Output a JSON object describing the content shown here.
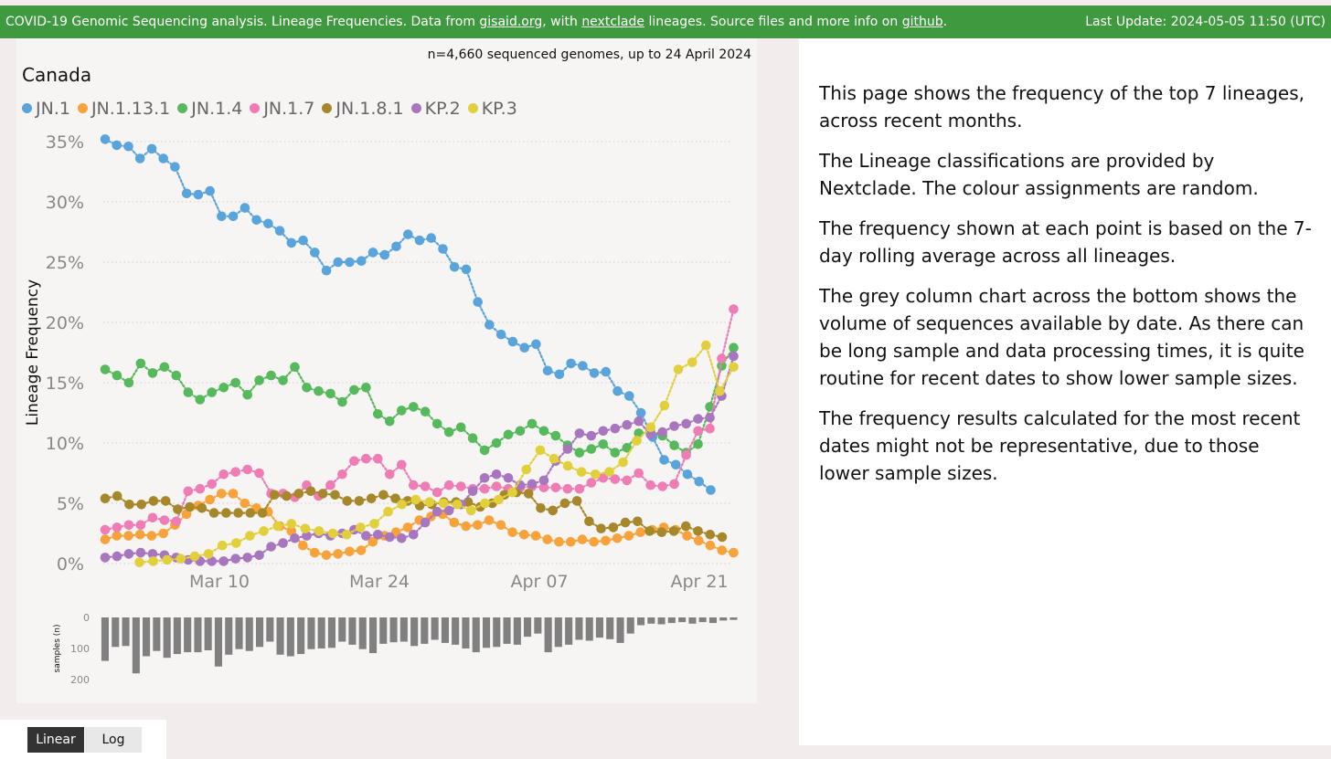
{
  "header": {
    "text_before_link1": "COVID-19 Genomic Sequencing analysis. Lineage Frequencies. Data from ",
    "link1": "gisaid.org",
    "text_between_1_2": ", with ",
    "link2": "nextclade",
    "text_between_2_3": " lineages. Source files and more info on ",
    "link3": "github",
    "text_after_link3": ".",
    "last_update": "Last Update: 2024-05-05 11:50 (UTC)"
  },
  "chart_panel": {
    "subtitle": "n=4,660 sequenced genomes, up to 24 April 2024",
    "region": "Canada"
  },
  "description": {
    "paragraphs": [
      "This page shows the frequency of the top 7 lineages, across recent months.",
      "The Lineage classifications are provided by Nextclade. The colour assignments are random.",
      "The frequency shown at each point is based on the 7-day rolling average across all lineages.",
      "The grey column chart across the bottom shows the volume of sequences available by date.  As there can be long sample and data processing times, it is quite routine for recent dates to show lower sample sizes.",
      "The frequency results calculated for the most recent dates might not be representative, due to those lower sample sizes."
    ]
  },
  "buttons": {
    "linear": "Linear",
    "log": "Log"
  },
  "chart_data": [
    {
      "type": "line",
      "ylabel": "Lineage Frequency",
      "ytick_labels": [
        "0%",
        "5%",
        "10%",
        "15%",
        "20%",
        "25%",
        "30%",
        "35%"
      ],
      "ylim": [
        0,
        0.36
      ],
      "grid": "horizontal dotted",
      "legend_position": "top-left",
      "x_range": [
        "2024-02-29",
        "2024-04-24"
      ],
      "xtick_labels": [
        {
          "date": "2024-03-10",
          "label": "Mar 10"
        },
        {
          "date": "2024-03-24",
          "label": "Mar 24"
        },
        {
          "date": "2024-04-07",
          "label": "Apr 07"
        },
        {
          "date": "2024-04-21",
          "label": "Apr 21"
        }
      ],
      "series": [
        {
          "name": "JN.1",
          "color": "#5aa4dc",
          "start": "2024-02-29",
          "end": "2024-04-22",
          "values": [
            35.2,
            34.7,
            34.6,
            33.6,
            34.4,
            33.6,
            32.9,
            30.7,
            30.6,
            30.9,
            28.8,
            28.8,
            29.5,
            28.5,
            28.2,
            27.6,
            26.6,
            26.8,
            25.8,
            24.3,
            25.0,
            25.0,
            25.1,
            25.8,
            25.6,
            26.3,
            27.3,
            26.8,
            27.0,
            26.1,
            24.6,
            24.4,
            21.7,
            19.8,
            19.0,
            18.4,
            17.9,
            18.2,
            16.0,
            15.7,
            16.6,
            16.4,
            15.8,
            15.9,
            14.3,
            13.9,
            12.5,
            10.5,
            8.6,
            8.2,
            7.4,
            6.8,
            6.1
          ]
        },
        {
          "name": "JN.1.13.1",
          "color": "#f7a23b",
          "start": "2024-02-29",
          "end": "2024-04-24",
          "values": [
            2.0,
            2.3,
            2.3,
            2.4,
            2.3,
            2.5,
            3.2,
            4.1,
            4.8,
            5.3,
            5.8,
            5.8,
            5.0,
            4.6,
            4.3,
            3.1,
            2.7,
            1.5,
            0.9,
            0.7,
            0.8,
            1.0,
            1.1,
            1.8,
            2.3,
            2.6,
            3.0,
            3.6,
            3.9,
            4.1,
            3.4,
            3.1,
            3.2,
            3.6,
            3.2,
            2.6,
            2.4,
            2.3,
            2.0,
            1.8,
            1.8,
            2.0,
            1.8,
            1.9,
            2.1,
            2.3,
            2.6,
            2.8,
            3.0,
            2.8,
            2.3,
            1.9,
            1.5,
            1.1,
            0.9
          ]
        },
        {
          "name": "JN.1.4",
          "color": "#56b95b",
          "start": "2024-02-29",
          "end": "2024-04-24",
          "values": [
            16.1,
            15.6,
            15.0,
            16.6,
            15.8,
            16.3,
            15.6,
            14.2,
            13.6,
            14.2,
            14.6,
            15.0,
            14.0,
            15.2,
            15.6,
            15.2,
            16.3,
            14.6,
            14.3,
            14.1,
            13.4,
            14.4,
            14.6,
            12.4,
            11.8,
            12.7,
            13.0,
            12.6,
            11.6,
            10.9,
            11.3,
            10.4,
            9.4,
            10.0,
            10.7,
            11.0,
            11.6,
            11.0,
            10.6,
            9.8,
            9.2,
            9.5,
            9.9,
            9.2,
            9.6,
            10.8,
            10.9,
            10.6,
            9.8,
            9.2,
            9.9,
            13.0,
            16.4,
            17.9
          ]
        },
        {
          "name": "JN.1.7",
          "color": "#ef7cb4",
          "start": "2024-02-29",
          "end": "2024-04-24",
          "values": [
            2.8,
            3.0,
            3.2,
            3.2,
            3.8,
            3.6,
            3.5,
            6.0,
            6.2,
            6.6,
            7.4,
            7.6,
            7.8,
            7.5,
            5.8,
            5.8,
            5.5,
            6.5,
            5.6,
            6.5,
            7.4,
            8.5,
            8.7,
            8.7,
            7.4,
            8.2,
            6.5,
            6.4,
            5.9,
            6.5,
            6.4,
            6.2,
            6.2,
            6.4,
            6.2,
            6.3,
            6.4,
            6.3,
            6.3,
            6.2,
            6.2,
            6.7,
            7.1,
            7.0,
            6.9,
            7.5,
            6.5,
            6.4,
            6.6,
            9.0,
            11.0,
            11.2,
            17.0,
            21.1
          ]
        },
        {
          "name": "JN.1.8.1",
          "color": "#a6882a",
          "start": "2024-02-29",
          "end": "2024-04-23",
          "values": [
            5.4,
            5.6,
            4.9,
            4.9,
            5.2,
            5.2,
            4.5,
            4.7,
            4.6,
            4.2,
            4.2,
            4.2,
            4.2,
            4.2,
            5.7,
            5.6,
            5.8,
            6.0,
            5.8,
            5.7,
            5.2,
            5.2,
            5.4,
            5.7,
            5.4,
            5.2,
            4.8,
            4.9,
            5.1,
            5.1,
            5.1,
            4.7,
            5.0,
            5.7,
            5.9,
            5.8,
            4.6,
            4.4,
            5.0,
            5.2,
            3.5,
            2.9,
            3.0,
            3.4,
            3.5,
            2.7,
            2.6,
            2.7,
            3.1,
            2.7,
            2.4,
            2.2
          ]
        },
        {
          "name": "KP.2",
          "color": "#a776bf",
          "start": "2024-02-29",
          "end": "2024-04-24",
          "values": [
            0.5,
            0.6,
            0.8,
            0.9,
            0.8,
            0.7,
            0.5,
            0.3,
            0.2,
            0.2,
            0.2,
            0.4,
            0.5,
            0.7,
            1.4,
            1.7,
            2.1,
            2.3,
            2.5,
            2.3,
            2.5,
            2.8,
            2.3,
            2.4,
            2.2,
            2.1,
            2.4,
            3.4,
            4.3,
            4.4,
            4.9,
            6.0,
            7.1,
            7.4,
            7.1,
            6.5,
            6.6,
            6.9,
            8.5,
            9.5,
            10.8,
            10.6,
            11.0,
            11.2,
            11.5,
            11.8,
            10.7,
            10.9,
            11.4,
            11.6,
            12.0,
            12.1,
            13.9,
            17.2
          ]
        },
        {
          "name": "KP.3",
          "color": "#e2cf3c",
          "start": "2024-03-03",
          "end": "2024-04-24",
          "values": [
            0.1,
            0.2,
            0.3,
            0.4,
            0.6,
            0.8,
            1.5,
            1.7,
            2.3,
            2.7,
            3.1,
            3.3,
            2.9,
            2.7,
            2.5,
            2.4,
            3.0,
            3.3,
            4.3,
            4.9,
            5.3,
            5.1,
            5.0,
            4.9,
            4.4,
            5.0,
            5.3,
            5.9,
            7.8,
            9.4,
            8.7,
            8.1,
            7.6,
            7.4,
            7.6,
            8.4,
            10.2,
            11.3,
            13.1,
            16.1,
            16.7,
            18.1,
            14.3,
            16.3
          ]
        }
      ]
    },
    {
      "type": "bar",
      "ylabel": "samples (n)",
      "ytick_labels": [
        "0",
        "100",
        "200"
      ],
      "ylim": [
        0,
        200
      ],
      "orientation": "downward from zero",
      "color": "#808080",
      "start": "2024-02-29",
      "end": "2024-04-24",
      "values": [
        140,
        95,
        92,
        180,
        125,
        108,
        130,
        118,
        112,
        112,
        106,
        158,
        120,
        102,
        108,
        95,
        78,
        120,
        125,
        118,
        102,
        100,
        98,
        78,
        88,
        102,
        115,
        85,
        80,
        78,
        92,
        85,
        72,
        82,
        88,
        100,
        112,
        98,
        95,
        85,
        88,
        62,
        52,
        112,
        95,
        88,
        72,
        75,
        65,
        70,
        82,
        52,
        25,
        20,
        22,
        18,
        15,
        20,
        15,
        18,
        10,
        8
      ]
    }
  ]
}
